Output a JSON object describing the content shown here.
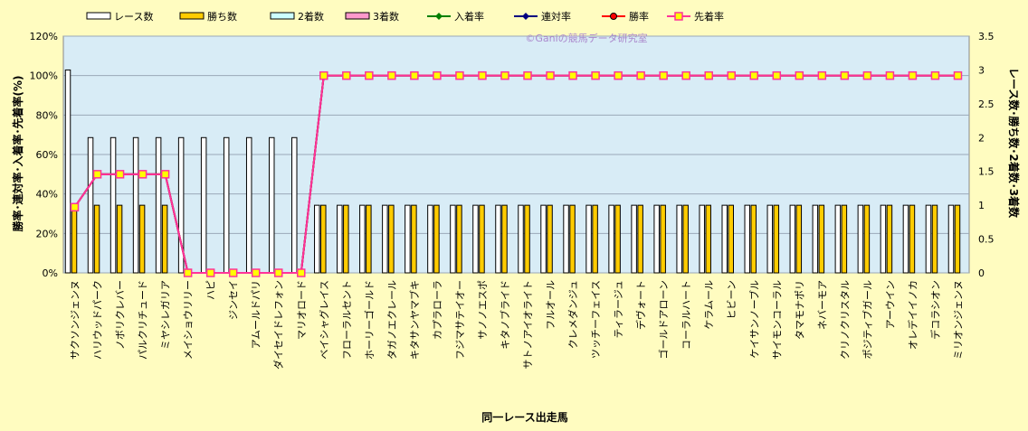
{
  "watermark": "©Ganiの競馬データ研究室",
  "colors": {
    "background": "#fffcc0",
    "plot_area": "#d8ecf6",
    "races_bar": "#ffffff",
    "wins_bar": "#ffcc00",
    "second_bar": "#ccffff",
    "third_bar": "#ff99cc",
    "place_rate": "#008000",
    "rentai_rate": "#000080",
    "win_rate": "#ff0000",
    "senchaku_rate": "#ff3399",
    "marker_fill": "#ffff00"
  },
  "chart_data": {
    "type": "bar",
    "xlabel": "同一レース出走馬",
    "ylabel_left": "勝率･連対率･入着率･先着率(%)",
    "ylabel_right": "レース数･勝ち数･2着数･3着数",
    "ylim_left": [
      0,
      120
    ],
    "ylim_right": [
      0,
      3.5
    ],
    "yticks_left": [
      "0%",
      "20%",
      "40%",
      "60%",
      "80%",
      "100%",
      "120%"
    ],
    "yticks_right": [
      "0",
      "0.5",
      "1",
      "1.5",
      "2",
      "2.5",
      "3",
      "3.5"
    ],
    "grid": true,
    "legend_position": "top",
    "categories": [
      "サクソンジェンヌ",
      "ハリウッドパーク",
      "ノボリクレバー",
      "パルクリチュード",
      "ミヤシレガリア",
      "メイショウリリー",
      "ハピ",
      "ジンセイ",
      "アムールドパリ",
      "ダイセイドレフォン",
      "マリオロード",
      "ベイシャグレイス",
      "フローラルセント",
      "ホーリーゴールド",
      "タガノエクレール",
      "キタサンヤマブキ",
      "カプラローラ",
      "フジマサテイオー",
      "サノノエスポ",
      "キタノブライド",
      "サトノアイオライト",
      "フルオール",
      "クレメダンジュ",
      "ツッチーフェイス",
      "ティラージュ",
      "デヴォート",
      "ゴールドアローン",
      "コーラルハート",
      "ケラムール",
      "ヒビーン",
      "ケイサンノーブル",
      "サイモンコーラル",
      "タマモナポリ",
      "ネバーモア",
      "クリノクリスタル",
      "ポジティブガール",
      "アーウイン",
      "オレデイイノカ",
      "デコラシオン",
      "ミリオンジェンヌ"
    ],
    "series": [
      {
        "name": "レース数",
        "axis": "right",
        "kind": "bar",
        "values": [
          3,
          2,
          2,
          2,
          2,
          2,
          2,
          2,
          2,
          2,
          2,
          1,
          1,
          1,
          1,
          1,
          1,
          1,
          1,
          1,
          1,
          1,
          1,
          1,
          1,
          1,
          1,
          1,
          1,
          1,
          1,
          1,
          1,
          1,
          1,
          1,
          1,
          1,
          1,
          1
        ]
      },
      {
        "name": "勝ち数",
        "axis": "right",
        "kind": "bar",
        "values": [
          1,
          1,
          1,
          1,
          1,
          0,
          0,
          0,
          0,
          0,
          0,
          1,
          1,
          1,
          1,
          1,
          1,
          1,
          1,
          1,
          1,
          1,
          1,
          1,
          1,
          1,
          1,
          1,
          1,
          1,
          1,
          1,
          1,
          1,
          1,
          1,
          1,
          1,
          1,
          1
        ]
      },
      {
        "name": "2着数",
        "axis": "right",
        "kind": "bar",
        "values": [
          0,
          0,
          0,
          0,
          0,
          0,
          0,
          0,
          0,
          0,
          0,
          0,
          0,
          0,
          0,
          0,
          0,
          0,
          0,
          0,
          0,
          0,
          0,
          0,
          0,
          0,
          0,
          0,
          0,
          0,
          0,
          0,
          0,
          0,
          0,
          0,
          0,
          0,
          0,
          0
        ]
      },
      {
        "name": "3着数",
        "axis": "right",
        "kind": "bar",
        "values": [
          0,
          0,
          0,
          0,
          0,
          0,
          0,
          0,
          0,
          0,
          0,
          0,
          0,
          0,
          0,
          0,
          0,
          0,
          0,
          0,
          0,
          0,
          0,
          0,
          0,
          0,
          0,
          0,
          0,
          0,
          0,
          0,
          0,
          0,
          0,
          0,
          0,
          0,
          0,
          0
        ]
      },
      {
        "name": "入着率",
        "axis": "left",
        "kind": "line",
        "values": [
          33.3,
          50,
          50,
          50,
          50,
          0,
          0,
          0,
          0,
          0,
          0,
          100,
          100,
          100,
          100,
          100,
          100,
          100,
          100,
          100,
          100,
          100,
          100,
          100,
          100,
          100,
          100,
          100,
          100,
          100,
          100,
          100,
          100,
          100,
          100,
          100,
          100,
          100,
          100,
          100
        ]
      },
      {
        "name": "連対率",
        "axis": "left",
        "kind": "line",
        "values": [
          33.3,
          50,
          50,
          50,
          50,
          0,
          0,
          0,
          0,
          0,
          0,
          100,
          100,
          100,
          100,
          100,
          100,
          100,
          100,
          100,
          100,
          100,
          100,
          100,
          100,
          100,
          100,
          100,
          100,
          100,
          100,
          100,
          100,
          100,
          100,
          100,
          100,
          100,
          100,
          100
        ]
      },
      {
        "name": "勝率",
        "axis": "left",
        "kind": "line",
        "values": [
          33.3,
          50,
          50,
          50,
          50,
          0,
          0,
          0,
          0,
          0,
          0,
          100,
          100,
          100,
          100,
          100,
          100,
          100,
          100,
          100,
          100,
          100,
          100,
          100,
          100,
          100,
          100,
          100,
          100,
          100,
          100,
          100,
          100,
          100,
          100,
          100,
          100,
          100,
          100,
          100
        ]
      },
      {
        "name": "先着率",
        "axis": "left",
        "kind": "line",
        "values": [
          33.3,
          50,
          50,
          50,
          50,
          0,
          0,
          0,
          0,
          0,
          0,
          100,
          100,
          100,
          100,
          100,
          100,
          100,
          100,
          100,
          100,
          100,
          100,
          100,
          100,
          100,
          100,
          100,
          100,
          100,
          100,
          100,
          100,
          100,
          100,
          100,
          100,
          100,
          100,
          100
        ]
      }
    ]
  }
}
